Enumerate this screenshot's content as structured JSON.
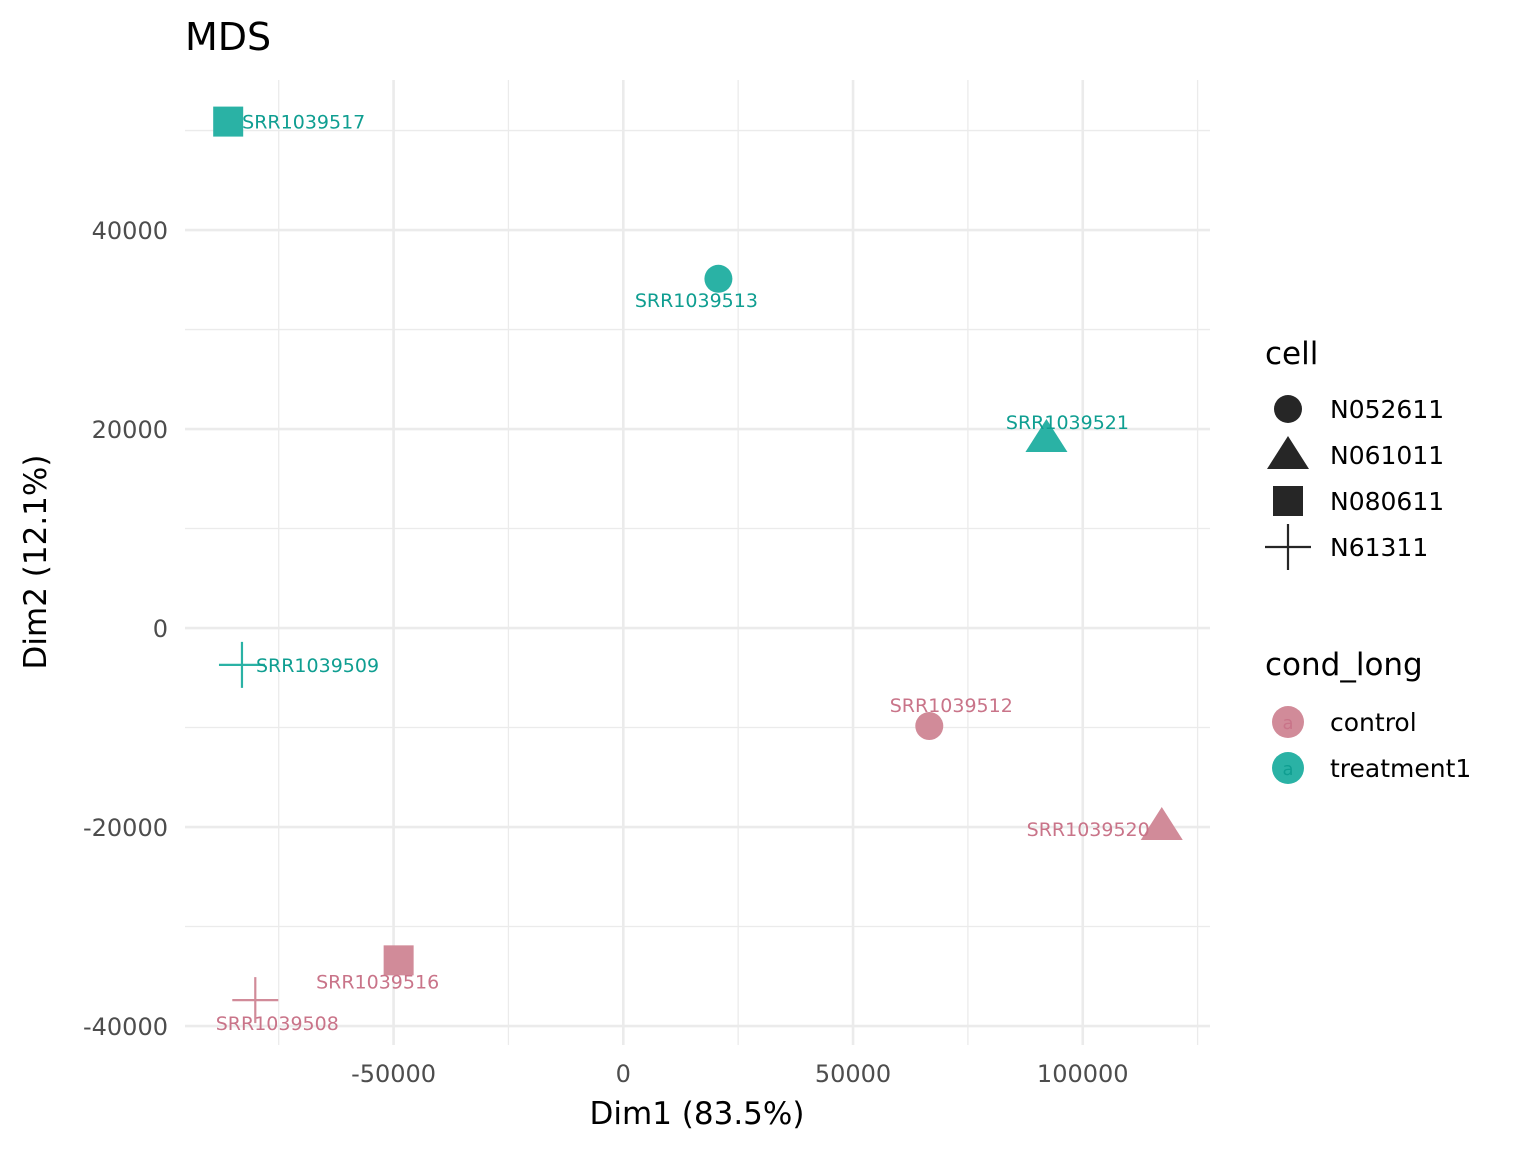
{
  "chart_data": {
    "type": "scatter",
    "title": "MDS",
    "xlabel": "Dim1 (83.5%)",
    "ylabel": "Dim2 (12.1%)",
    "xlim": [
      -95400,
      127700
    ],
    "ylim": [
      -40400,
      55080
    ],
    "x_ticks": [
      -50000,
      0,
      50000,
      100000
    ],
    "x_tick_labels": [
      "-50000",
      "0",
      "50000",
      "100000"
    ],
    "x_minor": [
      -75000,
      -25000,
      25000,
      75000,
      125000
    ],
    "y_ticks": [
      -40000,
      -20000,
      0,
      20000,
      40000
    ],
    "y_tick_labels": [
      "-40000",
      "-20000",
      "0",
      "20000",
      "40000"
    ],
    "y_minor": [
      -30000,
      -10000,
      10000,
      30000,
      50000
    ],
    "grid": true,
    "legend_position": "right",
    "colors": {
      "control": "#cf8796",
      "treatment1": "#23b0a2"
    },
    "label_colors": {
      "control": "#c97489",
      "treatment1": "#0f9e91"
    },
    "points": [
      {
        "sample": "SRR1039508",
        "x": -80100,
        "y": -37400,
        "cell": "N61311",
        "cond_long": "control"
      },
      {
        "sample": "SRR1039509",
        "x": -83000,
        "y": -3700,
        "cell": "N61311",
        "cond_long": "treatment1"
      },
      {
        "sample": "SRR1039512",
        "x": 66600,
        "y": -9850,
        "cell": "N052611",
        "cond_long": "control"
      },
      {
        "sample": "SRR1039513",
        "x": 20700,
        "y": 35100,
        "cell": "N052611",
        "cond_long": "treatment1"
      },
      {
        "sample": "SRR1039516",
        "x": -48900,
        "y": -33400,
        "cell": "N080611",
        "cond_long": "control"
      },
      {
        "sample": "SRR1039517",
        "x": -86000,
        "y": 50900,
        "cell": "N080611",
        "cond_long": "treatment1"
      },
      {
        "sample": "SRR1039520",
        "x": 117200,
        "y": -19900,
        "cell": "N061011",
        "cond_long": "control"
      },
      {
        "sample": "SRR1039521",
        "x": 92100,
        "y": 19100,
        "cell": "N061011",
        "cond_long": "treatment1"
      }
    ],
    "legends": [
      {
        "title": "cell",
        "entries": [
          {
            "label": "N052611",
            "shape": "circle"
          },
          {
            "label": "N061011",
            "shape": "triangle"
          },
          {
            "label": "N080611",
            "shape": "square"
          },
          {
            "label": "N61311",
            "shape": "plus"
          }
        ]
      },
      {
        "title": "cond_long",
        "entries": [
          {
            "label": "control",
            "key_glyph": "a"
          },
          {
            "label": "treatment1",
            "key_glyph": "a"
          }
        ]
      }
    ]
  }
}
